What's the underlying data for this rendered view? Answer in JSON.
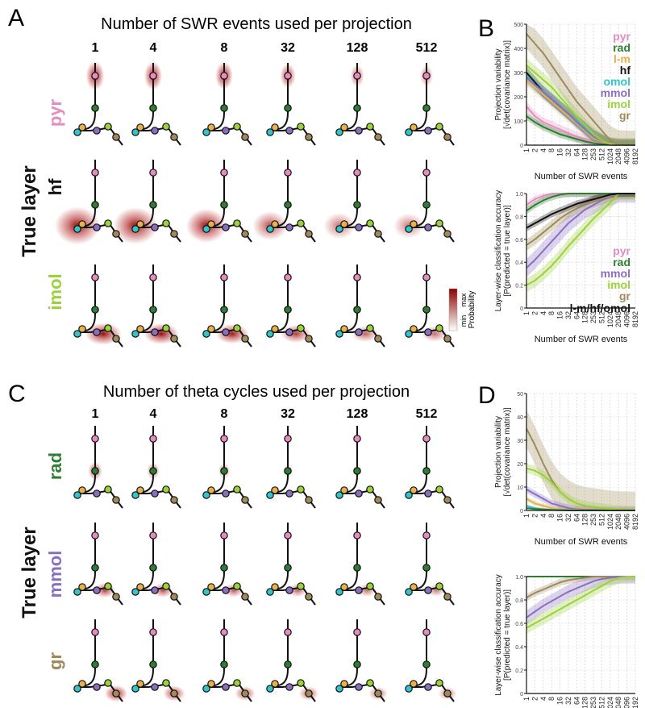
{
  "panels": {
    "A": {
      "letter": "A",
      "title": "Number of SWR events used per projection",
      "columns": [
        "1",
        "4",
        "8",
        "32",
        "128",
        "512"
      ],
      "rows": [
        "pyr",
        "hf",
        "imol"
      ],
      "row_colors": [
        "#e58cc0",
        "#111111",
        "#9bd13a"
      ],
      "true_layer_label": "True layer",
      "colorbar": {
        "max_label": "max",
        "min_label": "min",
        "title": "Probability",
        "color_max": "#8b0000",
        "color_min": "#ffffff"
      },
      "blob_strength": [
        [
          0.9,
          0.85,
          0.8,
          0.6,
          0.45,
          0.35
        ],
        [
          0.95,
          0.9,
          0.75,
          0.5,
          0.35,
          0.3
        ],
        [
          0.9,
          0.8,
          0.7,
          0.55,
          0.4,
          0.35
        ]
      ]
    },
    "C": {
      "letter": "C",
      "title": "Number of theta cycles used per projection",
      "columns": [
        "1",
        "4",
        "8",
        "32",
        "128",
        "512"
      ],
      "rows": [
        "rad",
        "mmol",
        "gr"
      ],
      "row_colors": [
        "#2e7d32",
        "#8a6fc1",
        "#a08a5a"
      ],
      "true_layer_label": "True layer",
      "blob_strength": [
        [
          0.6,
          0.45,
          0.35,
          0.2,
          0.1,
          0.05
        ],
        [
          0.55,
          0.5,
          0.45,
          0.4,
          0.35,
          0.3
        ],
        [
          0.7,
          0.6,
          0.5,
          0.45,
          0.4,
          0.35
        ]
      ]
    },
    "B": {
      "letter": "B"
    },
    "D": {
      "letter": "D"
    }
  },
  "node_colors": {
    "pyr": "#e58cc0",
    "rad": "#2e7d32",
    "lm": "#e8b14a",
    "hf": "#111111",
    "omol": "#33c3c9",
    "mmol": "#8a6fc1",
    "imol": "#9bd13a",
    "gr": "#a08a5a"
  },
  "chart_data": [
    {
      "id": "B-top",
      "type": "line",
      "ylabel": "Projection variability\n[√det(covariance matrix)]",
      "xlabel": "Number of SWR events",
      "x": [
        1,
        2,
        4,
        8,
        16,
        32,
        64,
        128,
        253,
        512,
        1024,
        2048,
        4096,
        8192
      ],
      "xticklabels": [
        "1",
        "2",
        "4",
        "8",
        "16",
        "32",
        "64",
        "128",
        "253",
        "512",
        "1024",
        "2048",
        "4096",
        "8192"
      ],
      "ylim": [
        0,
        500
      ],
      "yticks": [
        0,
        100,
        200,
        300,
        400,
        500
      ],
      "yticklabels": [
        "0",
        "100",
        "200",
        "300",
        "400",
        "500"
      ],
      "legend": [
        "pyr",
        "rad",
        "l-m",
        "hf",
        "omol",
        "mmol",
        "imol",
        "gr"
      ],
      "series": [
        {
          "name": "pyr",
          "color": "#e58cc0",
          "values": [
            160,
            120,
            95,
            80,
            65,
            50,
            35,
            22,
            12,
            6,
            2,
            0,
            0,
            0
          ],
          "band": 20
        },
        {
          "name": "rad",
          "color": "#2e7d32",
          "values": [
            120,
            95,
            75,
            60,
            45,
            35,
            25,
            15,
            8,
            4,
            1,
            0,
            0,
            0
          ],
          "band": 15
        },
        {
          "name": "l-m",
          "color": "#e8b14a",
          "values": [
            270,
            240,
            210,
            180,
            150,
            120,
            90,
            60,
            30,
            15,
            5,
            0,
            0,
            0
          ],
          "band": 25
        },
        {
          "name": "hf",
          "color": "#111111",
          "values": [
            300,
            260,
            220,
            190,
            160,
            130,
            100,
            70,
            40,
            20,
            5,
            0,
            0,
            0
          ],
          "band": 25
        },
        {
          "name": "omol",
          "color": "#33c3c9",
          "values": [
            290,
            250,
            220,
            190,
            160,
            130,
            100,
            70,
            40,
            20,
            5,
            0,
            0,
            0
          ],
          "band": 25
        },
        {
          "name": "mmol",
          "color": "#8a6fc1",
          "values": [
            280,
            250,
            220,
            190,
            160,
            130,
            95,
            65,
            35,
            18,
            5,
            0,
            0,
            0
          ],
          "band": 25
        },
        {
          "name": "imol",
          "color": "#9bd13a",
          "values": [
            330,
            300,
            270,
            240,
            200,
            160,
            120,
            80,
            45,
            20,
            5,
            0,
            0,
            0
          ],
          "band": 30
        },
        {
          "name": "gr",
          "color": "#a08a5a",
          "values": [
            460,
            420,
            380,
            330,
            280,
            230,
            180,
            140,
            100,
            60,
            20,
            2,
            0,
            0
          ],
          "band": 60
        }
      ]
    },
    {
      "id": "B-bottom",
      "type": "line",
      "ylabel": "Layer-wise classification accuracy\n[P(predicted = true layer)]",
      "xlabel": "Number of SWR events",
      "x": [
        1,
        2,
        4,
        8,
        16,
        32,
        64,
        128,
        253,
        512,
        1024,
        2048,
        4096,
        8192
      ],
      "xticklabels": [
        "1",
        "2",
        "4",
        "8",
        "16",
        "32",
        "64",
        "128",
        "253",
        "512",
        "1024",
        "2048",
        "4096",
        "8192"
      ],
      "ylim": [
        0,
        1
      ],
      "yticks": [
        0,
        0.2,
        0.4,
        0.6,
        0.8,
        1.0
      ],
      "yticklabels": [
        "0",
        "0.2",
        "0.4",
        "0.6",
        "0.8",
        "1.0"
      ],
      "legend": [
        "pyr",
        "rad",
        "mmol",
        "imol",
        "gr",
        "l-m/hf/omol"
      ],
      "series": [
        {
          "name": "pyr",
          "color": "#e58cc0",
          "values": [
            0.9,
            0.95,
            0.98,
            1,
            1,
            1,
            1,
            1,
            1,
            1,
            1,
            1,
            1,
            1
          ],
          "band": 0.03
        },
        {
          "name": "rad",
          "color": "#2e7d32",
          "values": [
            0.85,
            0.9,
            0.94,
            0.97,
            0.99,
            1,
            1,
            1,
            1,
            1,
            1,
            1,
            1,
            1
          ],
          "band": 0.03
        },
        {
          "name": "mmol",
          "color": "#8a6fc1",
          "values": [
            0.35,
            0.42,
            0.5,
            0.58,
            0.66,
            0.74,
            0.8,
            0.86,
            0.9,
            0.94,
            0.97,
            1,
            1,
            1
          ],
          "band": 0.08
        },
        {
          "name": "imol",
          "color": "#9bd13a",
          "values": [
            0.2,
            0.24,
            0.3,
            0.37,
            0.45,
            0.54,
            0.62,
            0.7,
            0.78,
            0.85,
            0.92,
            1,
            1,
            1
          ],
          "band": 0.06
        },
        {
          "name": "gr",
          "color": "#a08a5a",
          "values": [
            0.55,
            0.6,
            0.66,
            0.72,
            0.78,
            0.83,
            0.87,
            0.9,
            0.93,
            0.95,
            0.98,
            1,
            1,
            1
          ],
          "band": 0.05
        },
        {
          "name": "l-m/hf/omol",
          "color": "#111111",
          "values": [
            0.7,
            0.74,
            0.78,
            0.82,
            0.85,
            0.88,
            0.91,
            0.93,
            0.95,
            0.97,
            0.99,
            1,
            1,
            1
          ],
          "band": 0.03
        }
      ]
    },
    {
      "id": "D-top",
      "type": "line",
      "ylabel": "Projection variability\n[√det(covariance matrix)]",
      "xlabel": "Number of SWR events",
      "x": [
        1,
        2,
        4,
        8,
        16,
        32,
        64,
        128,
        253,
        512,
        1024,
        2048,
        4096,
        8192
      ],
      "xticklabels": [
        "1",
        "2",
        "4",
        "8",
        "16",
        "32",
        "64",
        "128",
        "253",
        "512",
        "1024",
        "2048",
        "4096",
        "8192"
      ],
      "ylim": [
        0,
        50
      ],
      "yticks": [
        0,
        10,
        20,
        30,
        40,
        50
      ],
      "yticklabels": [
        "0",
        "10",
        "20",
        "30",
        "40",
        "50"
      ],
      "series": [
        {
          "name": "gr",
          "color": "#a08a5a",
          "values": [
            35,
            28,
            20,
            13,
            8,
            5,
            3,
            2,
            1.5,
            1,
            0.5,
            0.2,
            0.1,
            0
          ],
          "band": 8
        },
        {
          "name": "imol",
          "color": "#9bd13a",
          "values": [
            18,
            17,
            15,
            12,
            8,
            5,
            3,
            2,
            1.5,
            1,
            0.5,
            0.2,
            0.1,
            0
          ],
          "band": 2
        },
        {
          "name": "mmol",
          "color": "#8a6fc1",
          "values": [
            9,
            7,
            5,
            3,
            2,
            1,
            0.5,
            0.3,
            0.2,
            0.1,
            0,
            0,
            0,
            0
          ],
          "band": 1.5
        },
        {
          "name": "l-m",
          "color": "#e8b14a",
          "values": [
            5,
            3,
            2,
            1,
            0.5,
            0.3,
            0.2,
            0.1,
            0,
            0,
            0,
            0,
            0,
            0
          ],
          "band": 1
        },
        {
          "name": "omol",
          "color": "#33c3c9",
          "values": [
            2,
            1,
            0.5,
            0.3,
            0.2,
            0.1,
            0,
            0,
            0,
            0,
            0,
            0,
            0,
            0
          ],
          "band": 0.5
        },
        {
          "name": "rad",
          "color": "#2e7d32",
          "values": [
            1,
            0.6,
            0.4,
            0.2,
            0.1,
            0,
            0,
            0,
            0,
            0,
            0,
            0,
            0,
            0
          ],
          "band": 0.3
        }
      ]
    },
    {
      "id": "D-bottom",
      "type": "line",
      "ylabel": "Layer-wise classification accuracy\n[P(predicted = true layer)]",
      "xlabel": "Number of SWR events",
      "x": [
        1,
        2,
        4,
        8,
        16,
        32,
        64,
        128,
        253,
        512,
        1024,
        2048,
        4096,
        8192
      ],
      "xticklabels": [
        "1",
        "2",
        "4",
        "8",
        "16",
        "32",
        "64",
        "128",
        "253",
        "512",
        "1024",
        "2048",
        "4096",
        "8192"
      ],
      "ylim": [
        0,
        1
      ],
      "yticks": [
        0,
        0.2,
        0.4,
        0.6,
        0.8,
        1.0
      ],
      "yticklabels": [
        "0",
        "0.2",
        "0.4",
        "0.6",
        "0.8",
        "1.0"
      ],
      "series": [
        {
          "name": "rad",
          "color": "#2e7d32",
          "values": [
            1,
            1,
            1,
            1,
            1,
            1,
            1,
            1,
            1,
            1,
            1,
            1,
            1,
            1
          ],
          "band": 0.005
        },
        {
          "name": "gr",
          "color": "#a08a5a",
          "values": [
            0.82,
            0.86,
            0.89,
            0.92,
            0.95,
            0.97,
            0.98,
            0.99,
            1,
            1,
            1,
            1,
            1,
            1
          ],
          "band": 0.03
        },
        {
          "name": "mmol",
          "color": "#8a6fc1",
          "values": [
            0.65,
            0.7,
            0.75,
            0.79,
            0.83,
            0.87,
            0.9,
            0.93,
            0.96,
            0.98,
            0.99,
            1,
            1,
            1
          ],
          "band": 0.06
        },
        {
          "name": "imol",
          "color": "#9bd13a",
          "values": [
            0.56,
            0.6,
            0.64,
            0.68,
            0.72,
            0.76,
            0.8,
            0.84,
            0.88,
            0.92,
            0.96,
            0.99,
            1,
            1
          ],
          "band": 0.05
        }
      ]
    }
  ]
}
